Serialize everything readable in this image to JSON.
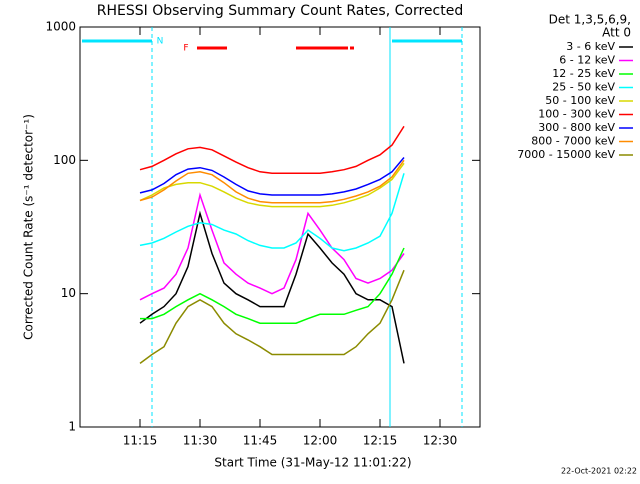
{
  "chart_data": {
    "type": "line",
    "title": "RHESSI Observing Summary Count Rates, Corrected",
    "x_label": "Start Time (31-May-12 11:01:22)",
    "y_label": "Corrected Count Rate (s⁻¹ detector⁻¹)",
    "timestamp": "22-Oct-2021 02:22",
    "legend_title": [
      "Det 1,3,5,6,9,",
      "Att 0"
    ],
    "log_y": true,
    "xlim": [
      660,
      760
    ],
    "ylim": [
      1,
      1000
    ],
    "xticks": [
      {
        "value": 675,
        "label": "11:15"
      },
      {
        "value": 690,
        "label": "11:30"
      },
      {
        "value": 705,
        "label": "11:45"
      },
      {
        "value": 720,
        "label": "12:00"
      },
      {
        "value": 735,
        "label": "12:15"
      },
      {
        "value": 750,
        "label": "12:30"
      }
    ],
    "yticks": [
      1,
      10,
      100,
      1000
    ],
    "night_label": "N",
    "night_color": "#00e5ff",
    "night_intervals": [
      [
        660,
        678
      ],
      [
        737.5,
        755.5
      ]
    ],
    "flare_label": "F",
    "flare_color": "#ff0000",
    "flare_intervals": [
      [
        689.25,
        696.75
      ],
      [
        714,
        727
      ],
      [
        727.5,
        728.5
      ]
    ],
    "x": [
      675,
      678,
      681,
      684,
      687,
      690,
      693,
      696,
      699,
      702,
      705,
      708,
      711,
      714,
      717,
      720,
      723,
      726,
      729,
      732,
      735,
      738,
      741
    ],
    "series": [
      {
        "name": "3 - 6 keV",
        "color": "#000000",
        "values": [
          6,
          7,
          8,
          10,
          16,
          40,
          20,
          12,
          10,
          9,
          8,
          8,
          8,
          14,
          28,
          22,
          17,
          14,
          10,
          9,
          9,
          8,
          3
        ]
      },
      {
        "name": "6 - 12 keV",
        "color": "#ff00ff",
        "values": [
          9,
          10,
          11,
          14,
          22,
          55,
          30,
          17,
          14,
          12,
          11,
          10,
          11,
          18,
          40,
          30,
          22,
          18,
          13,
          12,
          13,
          15,
          20
        ]
      },
      {
        "name": "12 - 25 keV",
        "color": "#00ff00",
        "values": [
          6.5,
          6.5,
          7,
          8,
          9,
          10,
          9,
          8,
          7,
          6.5,
          6,
          6,
          6,
          6,
          6.5,
          7,
          7,
          7,
          7.5,
          8,
          10,
          14,
          22
        ]
      },
      {
        "name": "25 - 50 keV",
        "color": "#00ffff",
        "values": [
          23,
          24,
          26,
          29,
          32,
          34,
          33,
          30,
          28,
          25,
          23,
          22,
          22,
          24,
          30,
          26,
          22,
          21,
          22,
          24,
          27,
          40,
          80
        ]
      },
      {
        "name": "50 - 100 keV",
        "color": "#d8d800",
        "values": [
          50,
          55,
          62,
          66,
          68,
          68,
          64,
          58,
          52,
          48,
          46,
          45,
          45,
          45,
          45,
          45,
          46,
          48,
          51,
          55,
          62,
          72,
          95
        ]
      },
      {
        "name": "100 - 300 keV",
        "color": "#ff0000",
        "values": [
          85,
          90,
          100,
          112,
          122,
          125,
          120,
          108,
          97,
          88,
          82,
          80,
          80,
          80,
          80,
          80,
          82,
          85,
          90,
          100,
          110,
          130,
          180
        ]
      },
      {
        "name": "300 - 800 keV",
        "color": "#0000ff",
        "values": [
          57,
          60,
          67,
          78,
          86,
          88,
          84,
          75,
          66,
          59,
          56,
          55,
          55,
          55,
          55,
          55,
          56,
          58,
          61,
          66,
          72,
          82,
          105
        ]
      },
      {
        "name": "800 - 7000 keV",
        "color": "#ff8c00",
        "values": [
          50,
          53,
          60,
          70,
          80,
          82,
          78,
          68,
          58,
          52,
          49,
          48,
          48,
          48,
          48,
          48,
          49,
          51,
          54,
          58,
          64,
          75,
          100
        ]
      },
      {
        "name": "7000 - 15000 keV",
        "color": "#8b8b00",
        "values": [
          3,
          3.5,
          4,
          6,
          8,
          9,
          8,
          6,
          5,
          4.5,
          4,
          3.5,
          3.5,
          3.5,
          3.5,
          3.5,
          3.5,
          3.5,
          4,
          5,
          6,
          9,
          15
        ]
      }
    ]
  }
}
